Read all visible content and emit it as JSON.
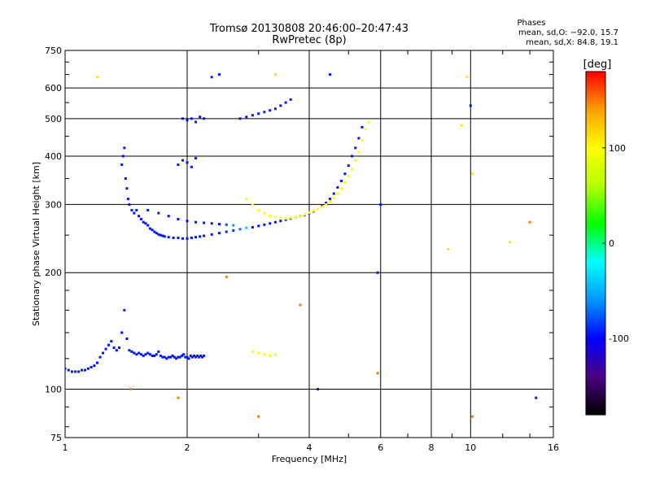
{
  "chart_data": {
    "type": "scatter",
    "title": "Tromsø 20130808 20:46:00–20:47:43",
    "subtitle": "RwPretec (8p)",
    "xlabel": "Frequency [MHz]",
    "ylabel": "Stationary phase Virtual Height [km]",
    "xscale": "log",
    "yscale": "log",
    "xlim": [
      1,
      16
    ],
    "ylim": [
      75,
      750
    ],
    "grid": true,
    "x_ticks": [
      1,
      2,
      4,
      6,
      8,
      10,
      16
    ],
    "x_tick_labels": [
      "1",
      "2",
      "4",
      "6",
      "8",
      "10",
      "16"
    ],
    "y_ticks": [
      75,
      100,
      200,
      300,
      400,
      500,
      600,
      750
    ],
    "y_tick_labels": [
      "75",
      "100",
      "200",
      "300",
      "400",
      "500",
      "600",
      "750"
    ],
    "info_box": {
      "heading": "Phases",
      "line1": "mean, sd,O: −92.0, 15.7",
      "line2": "mean, sd,X:  84.8, 19.1"
    },
    "colorbar": {
      "label": "[deg]",
      "range": [
        -180,
        180
      ],
      "ticks": [
        100,
        0,
        -100
      ],
      "tick_labels": [
        "100",
        "0",
        "-100"
      ],
      "colors": [
        "#000000",
        "#4b0082",
        "#0000ff",
        "#0096ff",
        "#00ffff",
        "#00ff00",
        "#b4ff00",
        "#ffff00",
        "#ffa000",
        "#ff0000"
      ]
    },
    "series": [
      {
        "values_note": "phase-coloured scatter of virtual height vs frequency",
        "points": [
          [
            1.0,
            113,
            -95
          ],
          [
            1.02,
            112,
            -95
          ],
          [
            1.04,
            111,
            -95
          ],
          [
            1.06,
            111,
            -95
          ],
          [
            1.08,
            111,
            -95
          ],
          [
            1.1,
            112,
            -95
          ],
          [
            1.12,
            112,
            -95
          ],
          [
            1.14,
            113,
            -95
          ],
          [
            1.16,
            114,
            -95
          ],
          [
            1.18,
            115,
            -95
          ],
          [
            1.2,
            117,
            -95
          ],
          [
            1.22,
            121,
            -95
          ],
          [
            1.24,
            124,
            -95
          ],
          [
            1.26,
            127,
            -95
          ],
          [
            1.28,
            130,
            -95
          ],
          [
            1.3,
            133,
            -95
          ],
          [
            1.32,
            128,
            -95
          ],
          [
            1.34,
            126,
            -95
          ],
          [
            1.36,
            128,
            -95
          ],
          [
            1.38,
            140,
            -95
          ],
          [
            1.4,
            160,
            -95
          ],
          [
            1.42,
            135,
            -95
          ],
          [
            1.44,
            126,
            -95
          ],
          [
            1.46,
            125,
            -95
          ],
          [
            1.48,
            124,
            -95
          ],
          [
            1.5,
            123,
            -95
          ],
          [
            1.52,
            124,
            -95
          ],
          [
            1.54,
            123,
            -95
          ],
          [
            1.56,
            122,
            -95
          ],
          [
            1.58,
            123,
            -95
          ],
          [
            1.6,
            124,
            -95
          ],
          [
            1.62,
            123,
            -95
          ],
          [
            1.64,
            122,
            -95
          ],
          [
            1.66,
            122,
            -95
          ],
          [
            1.68,
            123,
            -95
          ],
          [
            1.7,
            125,
            -95
          ],
          [
            1.72,
            122,
            -95
          ],
          [
            1.74,
            121,
            -95
          ],
          [
            1.76,
            121,
            -95
          ],
          [
            1.78,
            120,
            -95
          ],
          [
            1.8,
            121,
            -95
          ],
          [
            1.82,
            121,
            -95
          ],
          [
            1.84,
            122,
            -95
          ],
          [
            1.86,
            121,
            -95
          ],
          [
            1.88,
            120,
            -95
          ],
          [
            1.9,
            121,
            -95
          ],
          [
            1.92,
            121,
            -95
          ],
          [
            1.94,
            122,
            -95
          ],
          [
            1.96,
            123,
            -95
          ],
          [
            1.98,
            121,
            -95
          ],
          [
            2.0,
            121,
            -95
          ],
          [
            2.02,
            120,
            -95
          ],
          [
            2.04,
            122,
            -95
          ],
          [
            2.06,
            121,
            -95
          ],
          [
            2.08,
            122,
            -95
          ],
          [
            2.1,
            121,
            -95
          ],
          [
            2.12,
            122,
            -95
          ],
          [
            2.14,
            121,
            -95
          ],
          [
            2.16,
            122,
            -95
          ],
          [
            2.18,
            121,
            -95
          ],
          [
            2.2,
            122,
            -95
          ],
          [
            1.38,
            380,
            -95
          ],
          [
            1.39,
            400,
            -95
          ],
          [
            1.4,
            420,
            -95
          ],
          [
            1.41,
            350,
            -95
          ],
          [
            1.42,
            330,
            -95
          ],
          [
            1.43,
            310,
            -95
          ],
          [
            1.44,
            300,
            -95
          ],
          [
            1.46,
            290,
            -95
          ],
          [
            1.48,
            285,
            -95
          ],
          [
            1.5,
            290,
            -95
          ],
          [
            1.52,
            280,
            -95
          ],
          [
            1.54,
            275,
            -95
          ],
          [
            1.56,
            270,
            -95
          ],
          [
            1.58,
            268,
            -95
          ],
          [
            1.6,
            265,
            -95
          ],
          [
            1.62,
            260,
            -95
          ],
          [
            1.64,
            258,
            -95
          ],
          [
            1.66,
            255,
            -95
          ],
          [
            1.68,
            253,
            -95
          ],
          [
            1.7,
            251,
            -95
          ],
          [
            1.72,
            250,
            -95
          ],
          [
            1.74,
            249,
            -95
          ],
          [
            1.76,
            248,
            -95
          ],
          [
            1.8,
            247,
            -95
          ],
          [
            1.85,
            246,
            -95
          ],
          [
            1.9,
            246,
            -95
          ],
          [
            1.95,
            245,
            -95
          ],
          [
            2.0,
            245,
            -95
          ],
          [
            2.05,
            246,
            -95
          ],
          [
            2.1,
            247,
            -95
          ],
          [
            2.15,
            248,
            -95
          ],
          [
            2.2,
            249,
            -95
          ],
          [
            2.3,
            251,
            -95
          ],
          [
            2.4,
            253,
            -95
          ],
          [
            2.5,
            255,
            -90
          ],
          [
            2.6,
            257,
            -85
          ],
          [
            2.7,
            259,
            -70
          ],
          [
            2.8,
            261,
            -40
          ],
          [
            2.9,
            262,
            -95
          ],
          [
            3.0,
            264,
            -95
          ],
          [
            3.1,
            266,
            -95
          ],
          [
            3.2,
            268,
            -95
          ],
          [
            3.3,
            270,
            -95
          ],
          [
            3.4,
            272,
            -95
          ],
          [
            3.5,
            274,
            -95
          ],
          [
            3.6,
            276,
            -95
          ],
          [
            3.7,
            278,
            -95
          ],
          [
            3.8,
            280,
            -95
          ],
          [
            3.9,
            282,
            -95
          ],
          [
            4.0,
            285,
            -95
          ],
          [
            4.1,
            288,
            -95
          ],
          [
            4.2,
            292,
            -95
          ],
          [
            4.3,
            297,
            -95
          ],
          [
            4.4,
            303,
            -95
          ],
          [
            4.5,
            310,
            -95
          ],
          [
            4.6,
            320,
            -95
          ],
          [
            4.7,
            332,
            -95
          ],
          [
            4.8,
            345,
            -95
          ],
          [
            4.9,
            360,
            -95
          ],
          [
            5.0,
            378,
            -95
          ],
          [
            5.1,
            400,
            -95
          ],
          [
            5.2,
            420,
            -95
          ],
          [
            5.3,
            445,
            -95
          ],
          [
            5.4,
            475,
            -95
          ],
          [
            1.6,
            290,
            -95
          ],
          [
            1.7,
            285,
            -95
          ],
          [
            1.8,
            280,
            -95
          ],
          [
            1.9,
            275,
            -95
          ],
          [
            2.0,
            272,
            -95
          ],
          [
            2.1,
            270,
            -95
          ],
          [
            2.2,
            269,
            -95
          ],
          [
            2.3,
            268,
            -95
          ],
          [
            2.4,
            267,
            -95
          ],
          [
            2.5,
            266,
            -80
          ],
          [
            2.6,
            265,
            -60
          ],
          [
            1.9,
            380,
            -95
          ],
          [
            1.95,
            390,
            -95
          ],
          [
            2.0,
            385,
            -95
          ],
          [
            2.05,
            375,
            -95
          ],
          [
            2.1,
            395,
            -95
          ],
          [
            1.95,
            500,
            -95
          ],
          [
            2.0,
            495,
            -95
          ],
          [
            2.05,
            500,
            -95
          ],
          [
            2.1,
            490,
            -95
          ],
          [
            2.15,
            505,
            -95
          ],
          [
            2.2,
            500,
            -95
          ],
          [
            2.7,
            500,
            -95
          ],
          [
            2.8,
            505,
            -95
          ],
          [
            2.9,
            510,
            -95
          ],
          [
            3.0,
            515,
            -95
          ],
          [
            3.1,
            520,
            -95
          ],
          [
            3.2,
            525,
            -95
          ],
          [
            3.3,
            530,
            -95
          ],
          [
            3.4,
            540,
            -95
          ],
          [
            3.5,
            550,
            -95
          ],
          [
            3.6,
            560,
            -95
          ],
          [
            2.8,
            310,
            100
          ],
          [
            2.9,
            300,
            100
          ],
          [
            3.0,
            290,
            100
          ],
          [
            3.1,
            285,
            100
          ],
          [
            3.2,
            280,
            100
          ],
          [
            3.3,
            278,
            100
          ],
          [
            3.4,
            277,
            100
          ],
          [
            3.5,
            276,
            100
          ],
          [
            3.6,
            277,
            100
          ],
          [
            3.7,
            278,
            100
          ],
          [
            3.8,
            280,
            100
          ],
          [
            3.9,
            283,
            100
          ],
          [
            4.0,
            286,
            100
          ],
          [
            4.1,
            289,
            100
          ],
          [
            4.2,
            292,
            100
          ],
          [
            4.3,
            296,
            100
          ],
          [
            4.4,
            300,
            100
          ],
          [
            4.5,
            306,
            100
          ],
          [
            4.6,
            312,
            100
          ],
          [
            4.7,
            320,
            100
          ],
          [
            4.8,
            330,
            100
          ],
          [
            4.9,
            342,
            100
          ],
          [
            5.0,
            355,
            100
          ],
          [
            5.1,
            370,
            100
          ],
          [
            5.2,
            390,
            100
          ],
          [
            5.3,
            410,
            100
          ],
          [
            5.4,
            440,
            100
          ],
          [
            5.5,
            470,
            100
          ],
          [
            5.6,
            490,
            100
          ],
          [
            2.9,
            125,
            100
          ],
          [
            3.0,
            124,
            100
          ],
          [
            3.1,
            123,
            100
          ],
          [
            3.2,
            122,
            100
          ],
          [
            3.3,
            123,
            100
          ],
          [
            1.2,
            640,
            110
          ],
          [
            2.3,
            640,
            -95
          ],
          [
            2.4,
            650,
            -95
          ],
          [
            3.3,
            650,
            110
          ],
          [
            4.5,
            650,
            -95
          ],
          [
            9.8,
            640,
            110
          ],
          [
            10.0,
            540,
            -95
          ],
          [
            9.5,
            480,
            110
          ],
          [
            8.8,
            230,
            110
          ],
          [
            10.1,
            360,
            110
          ],
          [
            12.5,
            240,
            110
          ],
          [
            14.0,
            270,
            150
          ],
          [
            14.5,
            95,
            -95
          ],
          [
            10.1,
            85,
            150
          ],
          [
            6.0,
            300,
            -95
          ],
          [
            5.9,
            200,
            -95
          ],
          [
            5.9,
            110,
            150
          ],
          [
            4.2,
            100,
            -95
          ],
          [
            3.8,
            165,
            150
          ],
          [
            3.0,
            85,
            150
          ],
          [
            2.5,
            195,
            150
          ],
          [
            1.9,
            95,
            150
          ],
          [
            1.45,
            100,
            150
          ]
        ]
      }
    ]
  }
}
